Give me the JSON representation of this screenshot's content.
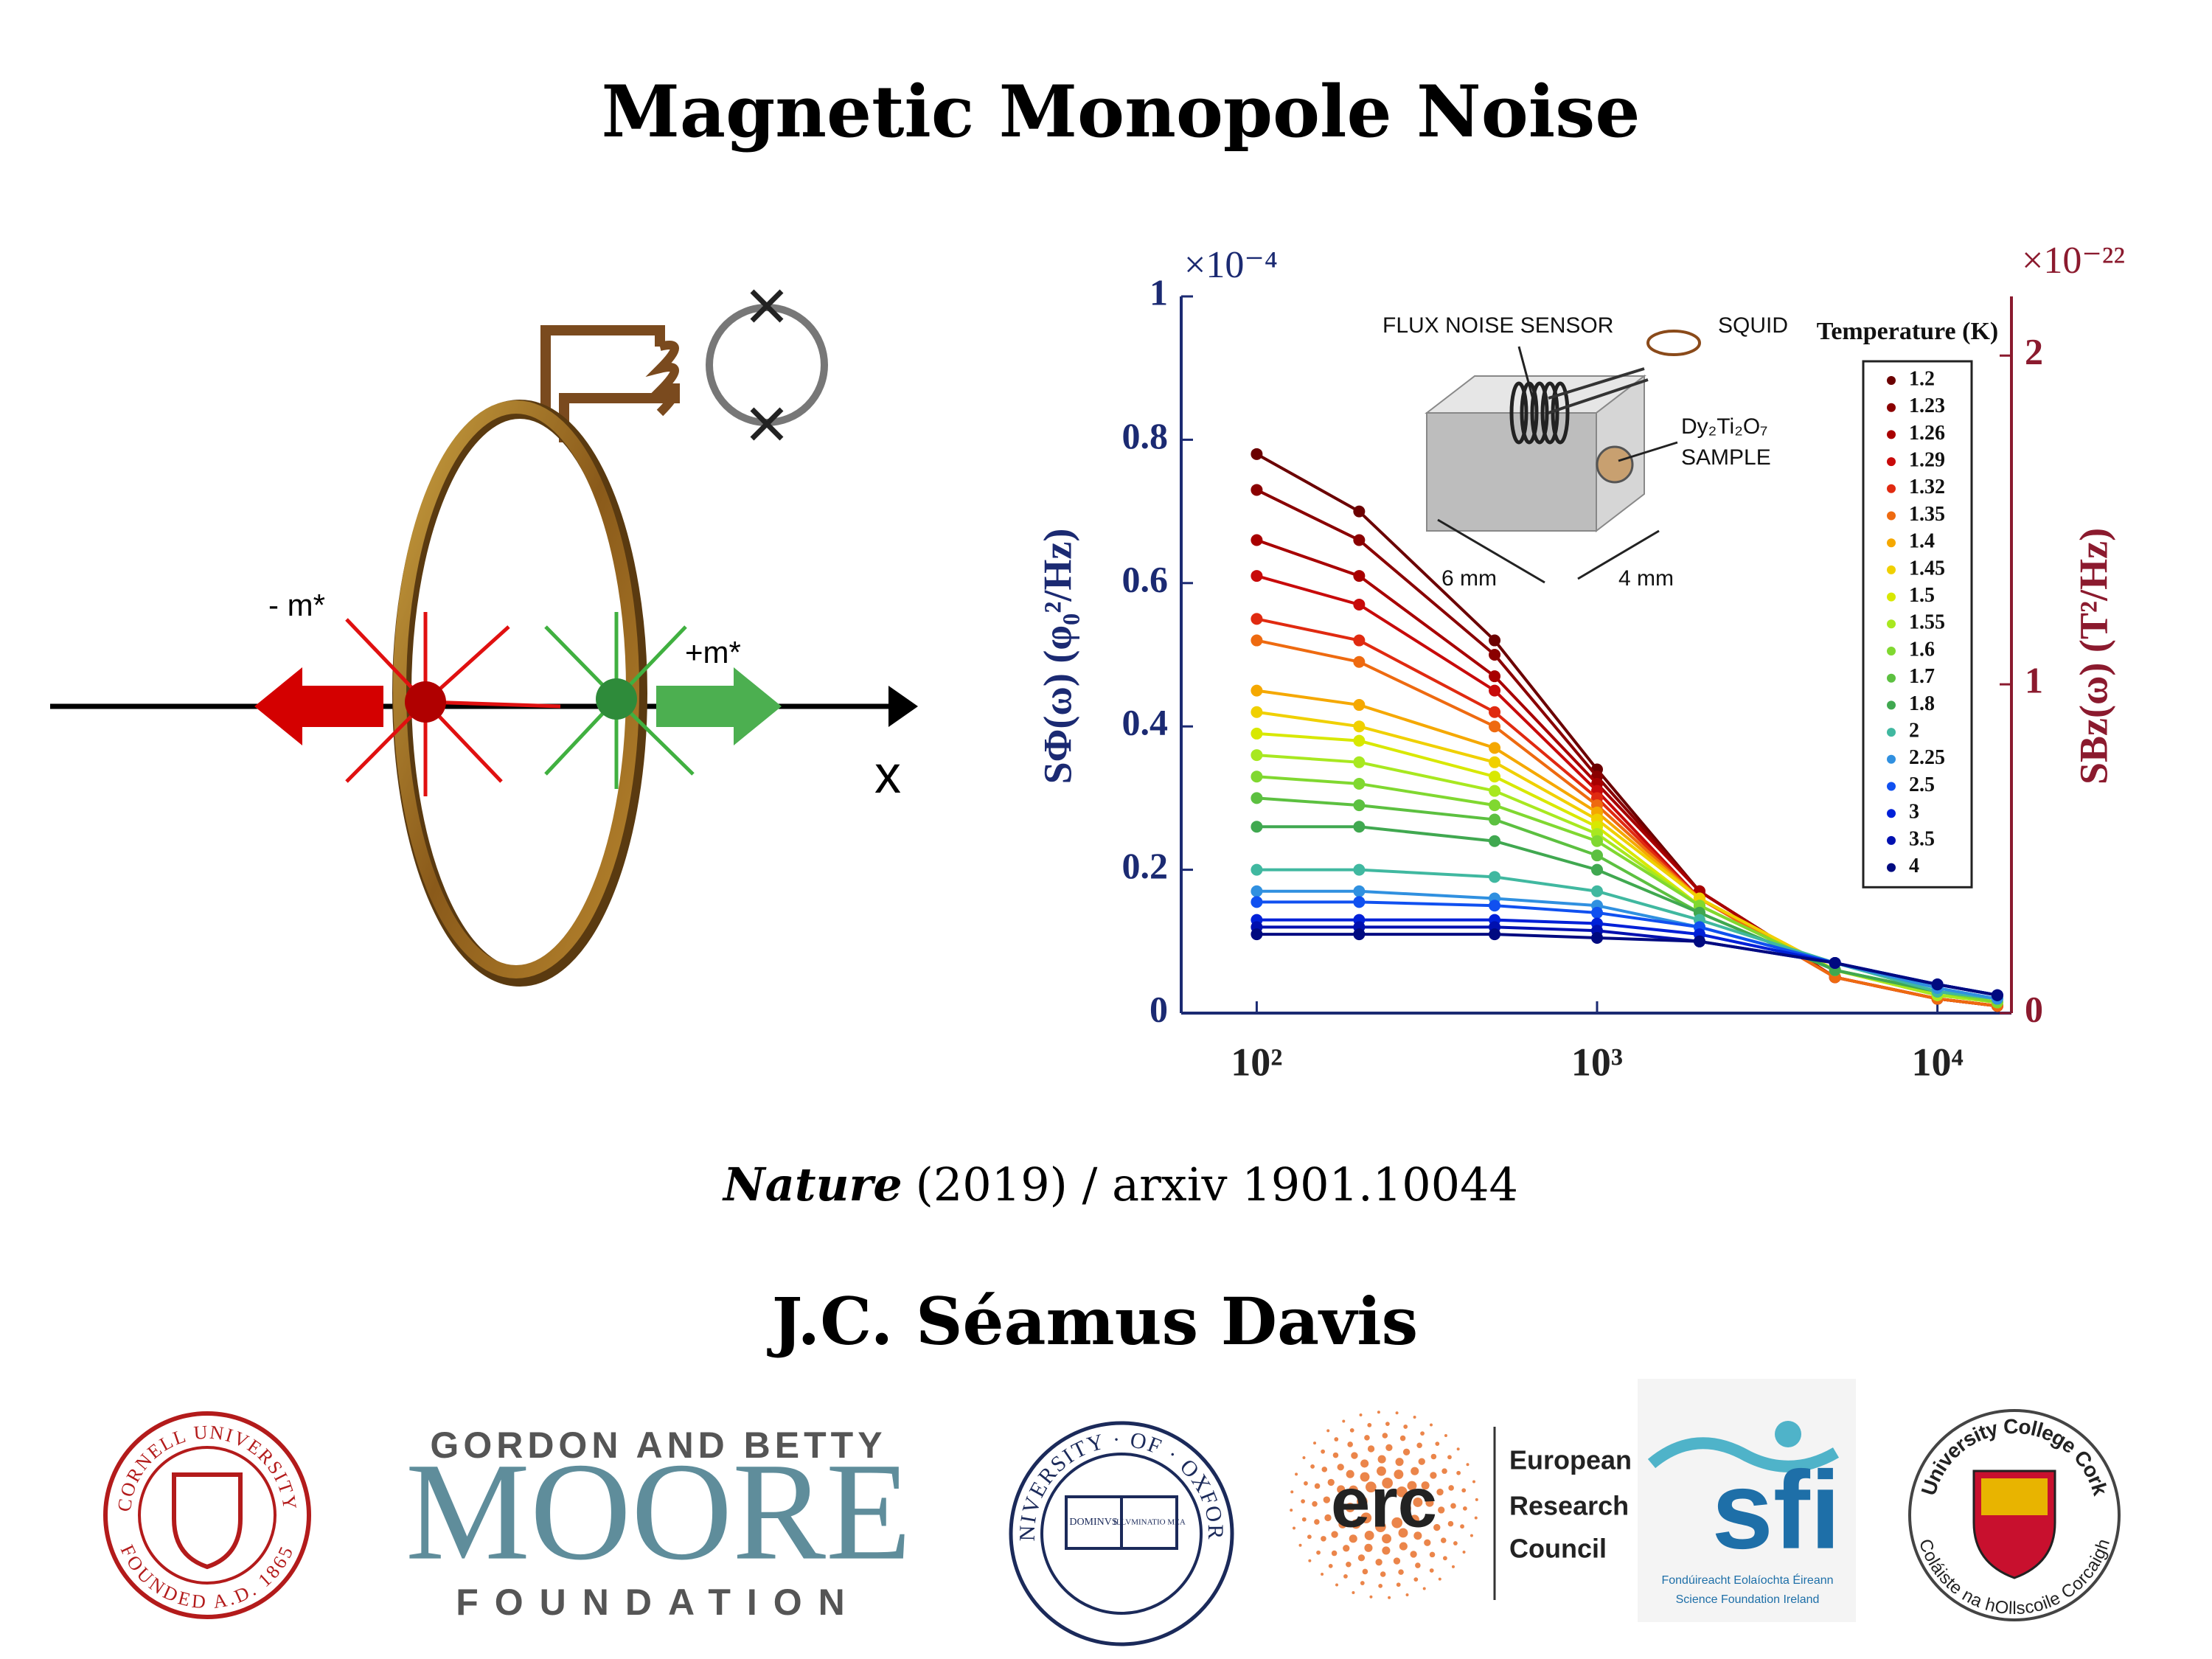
{
  "title": "Magnetic Monopole Noise",
  "diagram": {
    "minus_label": "- m*",
    "plus_label": "+m*",
    "axis_label": "x"
  },
  "chart_data": {
    "type": "line",
    "log_x": true,
    "x": [
      100,
      200,
      500,
      1000,
      2000,
      5000,
      10000,
      15000
    ],
    "xlim": [
      60,
      16500
    ],
    "xticks": [
      {
        "value": 100,
        "label": "10²"
      },
      {
        "value": 1000,
        "label": "10³"
      },
      {
        "value": 10000,
        "label": "10⁴"
      }
    ],
    "ylim": [
      0,
      1
    ],
    "yticks": [
      0,
      0.2,
      0.4,
      0.6,
      0.8,
      1
    ],
    "y2lim": [
      0,
      2.18
    ],
    "y2ticks": [
      0,
      1,
      2
    ],
    "y_multiplier": "×10⁻⁴",
    "y2_multiplier": "×10⁻²²",
    "ylabel": "SΦ(ω) (φ₀²/Hz)",
    "y2label": "SBz(ω) (T²/Hz)",
    "y_color": "#1b2a72",
    "y2_color": "#8b1a2e",
    "legend_title": "Temperature (K)",
    "legend_position": "right",
    "annotations": [
      "FLUX NOISE SENSOR",
      "SQUID",
      "Dy₂Ti₂O₇",
      "SAMPLE",
      "6 mm",
      "4 mm"
    ],
    "series": [
      {
        "name": "1.2",
        "color": "#6b0000",
        "values": [
          0.78,
          0.7,
          0.52,
          0.34,
          0.17,
          0.05,
          0.02,
          0.01
        ]
      },
      {
        "name": "1.23",
        "color": "#8a0000",
        "values": [
          0.73,
          0.66,
          0.5,
          0.33,
          0.17,
          0.05,
          0.02,
          0.01
        ]
      },
      {
        "name": "1.26",
        "color": "#a80000",
        "values": [
          0.66,
          0.61,
          0.47,
          0.32,
          0.17,
          0.05,
          0.02,
          0.01
        ]
      },
      {
        "name": "1.29",
        "color": "#c80a0a",
        "values": [
          0.61,
          0.57,
          0.45,
          0.31,
          0.16,
          0.05,
          0.02,
          0.01
        ]
      },
      {
        "name": "1.32",
        "color": "#e02a10",
        "values": [
          0.55,
          0.52,
          0.42,
          0.3,
          0.16,
          0.05,
          0.02,
          0.01
        ]
      },
      {
        "name": "1.35",
        "color": "#ee6a10",
        "values": [
          0.52,
          0.49,
          0.4,
          0.29,
          0.16,
          0.05,
          0.02,
          0.01
        ]
      },
      {
        "name": "1.4",
        "color": "#f5a800",
        "values": [
          0.45,
          0.43,
          0.37,
          0.28,
          0.16,
          0.06,
          0.025,
          0.015
        ]
      },
      {
        "name": "1.45",
        "color": "#f0d000",
        "values": [
          0.42,
          0.4,
          0.35,
          0.27,
          0.16,
          0.06,
          0.025,
          0.015
        ]
      },
      {
        "name": "1.5",
        "color": "#d8e800",
        "values": [
          0.39,
          0.38,
          0.33,
          0.26,
          0.15,
          0.06,
          0.025,
          0.015
        ]
      },
      {
        "name": "1.55",
        "color": "#a8e820",
        "values": [
          0.36,
          0.35,
          0.31,
          0.25,
          0.15,
          0.06,
          0.025,
          0.015
        ]
      },
      {
        "name": "1.6",
        "color": "#80d830",
        "values": [
          0.33,
          0.32,
          0.29,
          0.24,
          0.15,
          0.06,
          0.03,
          0.015
        ]
      },
      {
        "name": "1.7",
        "color": "#5cc040",
        "values": [
          0.3,
          0.29,
          0.27,
          0.22,
          0.14,
          0.06,
          0.03,
          0.02
        ]
      },
      {
        "name": "1.8",
        "color": "#40a850",
        "values": [
          0.26,
          0.26,
          0.24,
          0.2,
          0.14,
          0.06,
          0.03,
          0.02
        ]
      },
      {
        "name": "2",
        "color": "#40b8a0",
        "values": [
          0.2,
          0.2,
          0.19,
          0.17,
          0.13,
          0.07,
          0.03,
          0.02
        ]
      },
      {
        "name": "2.25",
        "color": "#3090e0",
        "values": [
          0.17,
          0.17,
          0.16,
          0.15,
          0.12,
          0.07,
          0.035,
          0.02
        ]
      },
      {
        "name": "2.5",
        "color": "#1050f0",
        "values": [
          0.155,
          0.155,
          0.15,
          0.14,
          0.12,
          0.07,
          0.04,
          0.025
        ]
      },
      {
        "name": "3",
        "color": "#0020d8",
        "values": [
          0.13,
          0.13,
          0.13,
          0.125,
          0.11,
          0.07,
          0.04,
          0.025
        ]
      },
      {
        "name": "3.5",
        "color": "#0010b0",
        "values": [
          0.12,
          0.12,
          0.12,
          0.115,
          0.1,
          0.07,
          0.04,
          0.025
        ]
      },
      {
        "name": "4",
        "color": "#000a80",
        "values": [
          0.11,
          0.11,
          0.11,
          0.105,
          0.1,
          0.07,
          0.04,
          0.025
        ]
      }
    ]
  },
  "citation": {
    "journal": "Nature",
    "rest": "(2019) / arxiv 1901.10044"
  },
  "author": "J.C. Séamus Davis",
  "logos": {
    "cornell": {
      "top": "CORNELL UNIVERSITY",
      "bottom": "FOUNDED A.D. 1865"
    },
    "moore": {
      "line1": "GORDON AND BETTY",
      "line2": "MOORE",
      "line3": "FOUNDATION"
    },
    "oxford": {
      "ring": "UNIVERSITY · OF · OXFORD",
      "book_left": "DOMINVS",
      "book_right": "ILLVMINATIO MEA"
    },
    "erc": {
      "mark": "erc",
      "line1": "European",
      "line2": "Research",
      "line3": "Council"
    },
    "sfi": {
      "mark": "sfi",
      "line1": "Fondúireacht Eolaíochta Éireann",
      "line2": "Science Foundation Ireland"
    },
    "ucc": {
      "top": "University College Cork",
      "bottom": "Coláiste na hOllscoile Corcaigh"
    }
  }
}
